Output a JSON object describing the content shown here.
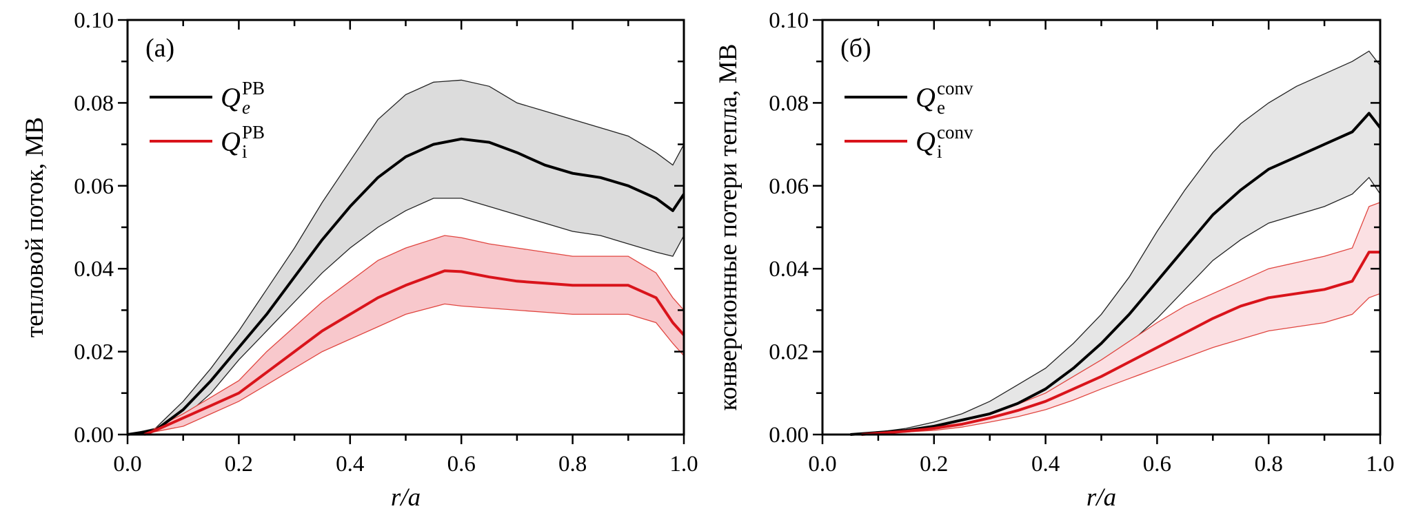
{
  "chart_data": [
    {
      "type": "line",
      "panel_label": "(a)",
      "title": "",
      "xlabel": "r/a",
      "ylabel": "тепловой поток, МВ",
      "xlim": [
        0.0,
        1.0
      ],
      "ylim": [
        0.0,
        0.1
      ],
      "xticks": [
        "0.0",
        "0.2",
        "0.4",
        "0.6",
        "0.8",
        "1.0"
      ],
      "yticks": [
        "0.00",
        "0.02",
        "0.04",
        "0.06",
        "0.08",
        "0.10"
      ],
      "grid": false,
      "legend_position": "top-left",
      "series": [
        {
          "name": "Q_e^PB",
          "legend_main": "Q",
          "legend_sub": "e",
          "legend_sub_italic": true,
          "legend_sup": "PB",
          "color": "#000000",
          "band_color": "#dcdcdc",
          "band_edge_color": "#222222",
          "x": [
            0.0,
            0.05,
            0.1,
            0.15,
            0.2,
            0.25,
            0.3,
            0.35,
            0.4,
            0.45,
            0.5,
            0.55,
            0.6,
            0.65,
            0.7,
            0.75,
            0.8,
            0.85,
            0.9,
            0.95,
            0.98,
            1.0
          ],
          "y": [
            0.0,
            0.001,
            0.006,
            0.013,
            0.021,
            0.029,
            0.038,
            0.047,
            0.055,
            0.062,
            0.067,
            0.07,
            0.0713,
            0.0705,
            0.068,
            0.065,
            0.063,
            0.062,
            0.06,
            0.057,
            0.054,
            0.058
          ],
          "upper": [
            0.0,
            0.0015,
            0.008,
            0.016,
            0.025,
            0.035,
            0.045,
            0.056,
            0.066,
            0.076,
            0.082,
            0.085,
            0.0855,
            0.084,
            0.08,
            0.078,
            0.076,
            0.074,
            0.072,
            0.068,
            0.065,
            0.07
          ],
          "lower": [
            0.0,
            0.0008,
            0.004,
            0.01,
            0.018,
            0.025,
            0.032,
            0.039,
            0.045,
            0.05,
            0.054,
            0.057,
            0.057,
            0.055,
            0.053,
            0.051,
            0.049,
            0.048,
            0.046,
            0.044,
            0.043,
            0.048
          ]
        },
        {
          "name": "Q_i^PB",
          "legend_main": "Q",
          "legend_sub": "i",
          "legend_sub_italic": false,
          "legend_sup": "PB",
          "color": "#d9141b",
          "band_color": "#f8c8cc",
          "band_edge_color": "#e0453f",
          "x": [
            0.03,
            0.05,
            0.1,
            0.15,
            0.2,
            0.25,
            0.3,
            0.35,
            0.4,
            0.45,
            0.5,
            0.57,
            0.6,
            0.65,
            0.7,
            0.75,
            0.8,
            0.85,
            0.9,
            0.95,
            0.98,
            1.0
          ],
          "y": [
            0.0,
            0.001,
            0.004,
            0.007,
            0.01,
            0.015,
            0.02,
            0.025,
            0.029,
            0.033,
            0.036,
            0.0395,
            0.0393,
            0.038,
            0.037,
            0.0365,
            0.036,
            0.036,
            0.036,
            0.033,
            0.027,
            0.024
          ],
          "upper": [
            0.0,
            0.0015,
            0.005,
            0.009,
            0.013,
            0.02,
            0.026,
            0.032,
            0.037,
            0.042,
            0.045,
            0.048,
            0.0475,
            0.046,
            0.045,
            0.044,
            0.043,
            0.043,
            0.043,
            0.039,
            0.033,
            0.03
          ],
          "lower": [
            0.0,
            0.0007,
            0.002,
            0.005,
            0.008,
            0.012,
            0.016,
            0.02,
            0.023,
            0.026,
            0.029,
            0.0315,
            0.031,
            0.0305,
            0.03,
            0.0295,
            0.029,
            0.029,
            0.029,
            0.027,
            0.022,
            0.019
          ]
        }
      ]
    },
    {
      "type": "line",
      "panel_label": "(б)",
      "title": "",
      "xlabel": "r/a",
      "ylabel": "конверсионные потери тепла, МВ",
      "xlim": [
        0.0,
        1.0
      ],
      "ylim": [
        0.0,
        0.1
      ],
      "xticks": [
        "0.0",
        "0.2",
        "0.4",
        "0.6",
        "0.8",
        "1.0"
      ],
      "yticks": [
        "0.00",
        "0.02",
        "0.04",
        "0.06",
        "0.08",
        "0.10"
      ],
      "grid": false,
      "legend_position": "top-left",
      "series": [
        {
          "name": "Q_e^conv",
          "legend_main": "Q",
          "legend_sub": "e",
          "legend_sub_italic": false,
          "legend_sup": "conv",
          "color": "#000000",
          "band_color": "#e6e6e6",
          "band_edge_color": "#222222",
          "x": [
            0.05,
            0.1,
            0.15,
            0.2,
            0.25,
            0.3,
            0.35,
            0.4,
            0.45,
            0.5,
            0.55,
            0.6,
            0.65,
            0.7,
            0.75,
            0.8,
            0.85,
            0.9,
            0.95,
            0.98,
            1.0
          ],
          "y": [
            0.0,
            0.0005,
            0.001,
            0.002,
            0.0035,
            0.005,
            0.0075,
            0.011,
            0.016,
            0.022,
            0.029,
            0.037,
            0.045,
            0.053,
            0.059,
            0.064,
            0.067,
            0.07,
            0.073,
            0.0775,
            0.074
          ],
          "upper": [
            0.0,
            0.0006,
            0.0015,
            0.003,
            0.005,
            0.008,
            0.012,
            0.016,
            0.022,
            0.029,
            0.038,
            0.049,
            0.059,
            0.068,
            0.075,
            0.08,
            0.084,
            0.087,
            0.09,
            0.0925,
            0.089
          ],
          "lower": [
            0.0,
            0.0004,
            0.0008,
            0.0015,
            0.0025,
            0.004,
            0.0055,
            0.008,
            0.0115,
            0.016,
            0.022,
            0.028,
            0.035,
            0.042,
            0.047,
            0.051,
            0.053,
            0.055,
            0.058,
            0.062,
            0.058
          ]
        },
        {
          "name": "Q_i^conv",
          "legend_main": "Q",
          "legend_sub": "i",
          "legend_sub_italic": false,
          "legend_sup": "conv",
          "color": "#d9141b",
          "band_color": "#fbe0e3",
          "band_edge_color": "#e0453f",
          "x": [
            0.07,
            0.1,
            0.15,
            0.2,
            0.25,
            0.3,
            0.35,
            0.4,
            0.45,
            0.5,
            0.55,
            0.6,
            0.65,
            0.7,
            0.75,
            0.8,
            0.85,
            0.9,
            0.95,
            0.98,
            1.0
          ],
          "y": [
            0.0,
            0.0003,
            0.0008,
            0.0015,
            0.0025,
            0.004,
            0.0058,
            0.008,
            0.011,
            0.014,
            0.0175,
            0.021,
            0.0245,
            0.028,
            0.031,
            0.033,
            0.034,
            0.035,
            0.037,
            0.044,
            0.044
          ],
          "upper": [
            0.0,
            0.0004,
            0.001,
            0.002,
            0.0033,
            0.005,
            0.0073,
            0.01,
            0.014,
            0.018,
            0.0225,
            0.027,
            0.031,
            0.034,
            0.037,
            0.04,
            0.0415,
            0.043,
            0.045,
            0.055,
            0.056
          ],
          "lower": [
            0.0,
            0.0002,
            0.0006,
            0.001,
            0.0018,
            0.003,
            0.0043,
            0.006,
            0.0083,
            0.011,
            0.0135,
            0.016,
            0.0185,
            0.021,
            0.023,
            0.025,
            0.026,
            0.027,
            0.029,
            0.033,
            0.034
          ]
        }
      ]
    }
  ]
}
